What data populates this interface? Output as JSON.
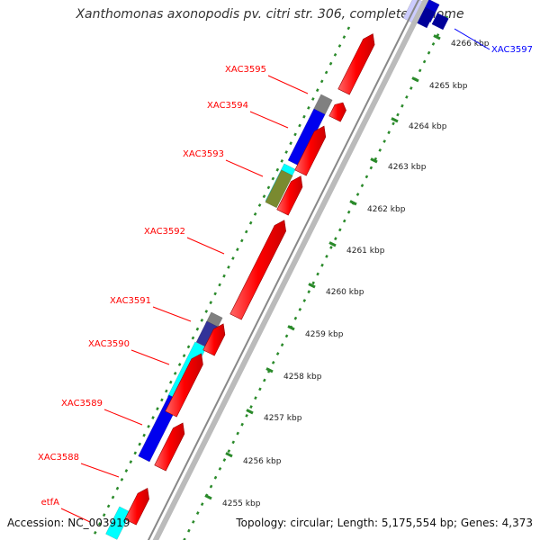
{
  "title": "Xanthomonas axonopodis pv. citri str. 306, complete genome",
  "accession": "Accession: NC_003919",
  "topology": "Topology: circular; Length: 5,175,554 bp; Genes: 4,373",
  "ticks": [
    {
      "label": "4266 kbp",
      "pos": 4266
    },
    {
      "label": "4265 kbp",
      "pos": 4265
    },
    {
      "label": "4264 kbp",
      "pos": 4264
    },
    {
      "label": "4263 kbp",
      "pos": 4263
    },
    {
      "label": "4262 kbp",
      "pos": 4262
    },
    {
      "label": "4261 kbp",
      "pos": 4261
    },
    {
      "label": "4260 kbp",
      "pos": 4260
    },
    {
      "label": "4259 kbp",
      "pos": 4259
    },
    {
      "label": "4258 kbp",
      "pos": 4258
    },
    {
      "label": "4257 kbp",
      "pos": 4257
    },
    {
      "label": "4256 kbp",
      "pos": 4256
    },
    {
      "label": "4255 kbp",
      "pos": 4255
    }
  ],
  "gene_labels": [
    {
      "text": "XAC3597",
      "color": "#0000ff"
    },
    {
      "text": "XAC3595",
      "color": "#ff0000"
    },
    {
      "text": "XAC3594",
      "color": "#ff0000"
    },
    {
      "text": "XAC3593",
      "color": "#ff0000"
    },
    {
      "text": "XAC3592",
      "color": "#ff0000"
    },
    {
      "text": "XAC3591",
      "color": "#ff0000"
    },
    {
      "text": "XAC3590",
      "color": "#ff0000"
    },
    {
      "text": "XAC3589",
      "color": "#ff0000"
    },
    {
      "text": "XAC3588",
      "color": "#ff0000"
    },
    {
      "text": "etfA",
      "color": "#ff0000"
    }
  ],
  "colors": {
    "gene": "#ff0000",
    "cog_blue": "#0000ee",
    "cog_cyan": "#00ffff",
    "cog_gray": "#808080",
    "cog_olive": "#7a8a30",
    "backbone": "#999999",
    "tick": "#2a8a2a"
  }
}
